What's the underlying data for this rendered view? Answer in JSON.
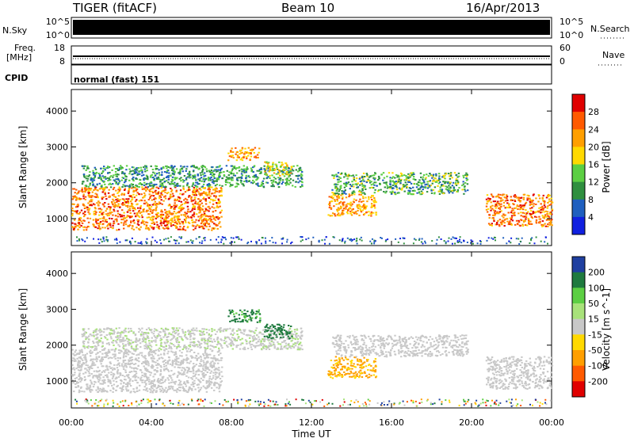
{
  "header": {
    "radar": "TIGER (fitACF)",
    "beam": "Beam 10",
    "date": "16/Apr/2013"
  },
  "top_strips": {
    "nsky_label": "N.Sky",
    "nsky_ticks": [
      "10^5",
      "10^0"
    ],
    "nsearch_label": "N.Search",
    "nsearch_ticks": [
      "10^5",
      "10^0"
    ],
    "freq_label": "Freq.",
    "freq_unit": "[MHz]",
    "freq_ticks": [
      "18",
      "8"
    ],
    "nave_label": "Nave",
    "nave_ticks": [
      "60",
      "0"
    ],
    "cpid_label": "CPID",
    "cpid_text": "normal (fast) 151"
  },
  "chart_data": [
    {
      "type": "heatmap",
      "panel": "power",
      "ylabel": "Slant Range [km]",
      "yticks": [
        "1000",
        "2000",
        "3000",
        "4000"
      ],
      "ylim": [
        250,
        4600
      ],
      "xlim_hours": [
        0,
        24
      ],
      "colorbar_label": "Power [dB]",
      "colorbar_ticks": [
        "28",
        "24",
        "20",
        "16",
        "12",
        "8",
        "4"
      ],
      "colorbar_colors": [
        "#e00000",
        "#ff5a00",
        "#ff9f00",
        "#ffd900",
        "#5ccf43",
        "#2f8f3f",
        "#1f5fbf",
        "#1020e0"
      ],
      "regions": [
        {
          "name": "ground-scatter-morning",
          "t": [
            0.0,
            7.5
          ],
          "range_km": [
            700,
            1900
          ],
          "level_db": 24
        },
        {
          "name": "upper-band",
          "t": [
            0.5,
            11.5
          ],
          "range_km": [
            1900,
            2500
          ],
          "level_db": 10
        },
        {
          "name": "echo-0830",
          "t": [
            7.8,
            9.4
          ],
          "range_km": [
            2650,
            3000
          ],
          "level_db": 22
        },
        {
          "name": "echo-1000",
          "t": [
            9.6,
            11.0
          ],
          "range_km": [
            2200,
            2600
          ],
          "level_db": 18
        },
        {
          "name": "echo-1330",
          "t": [
            12.8,
            15.2
          ],
          "range_km": [
            1100,
            1700
          ],
          "level_db": 22
        },
        {
          "name": "arc-1500-1900",
          "t": [
            13.0,
            19.8
          ],
          "range_km": [
            1700,
            2300
          ],
          "level_db": 12
        },
        {
          "name": "ground-scatter-evening",
          "t": [
            20.7,
            24.0
          ],
          "range_km": [
            800,
            1700
          ],
          "level_db": 24
        }
      ]
    },
    {
      "type": "heatmap",
      "panel": "velocity",
      "ylabel": "Slant Range [km]",
      "yticks": [
        "1000",
        "2000",
        "3000",
        "4000"
      ],
      "ylim": [
        250,
        4600
      ],
      "xlim_hours": [
        0,
        24
      ],
      "xticks": [
        "00:00",
        "04:00",
        "08:00",
        "12:00",
        "16:00",
        "20:00",
        "00:00"
      ],
      "xlabel": "Time UT",
      "colorbar_label": "Velocity [m s^-1]",
      "colorbar_ticks": [
        "200",
        "100",
        "50",
        "15",
        "-15",
        "-50",
        "-100",
        "-200"
      ],
      "colorbar_colors": [
        "#1f3fa0",
        "#1f7a3f",
        "#5ccf43",
        "#a8e27a",
        "#c8c8c8",
        "#ffd900",
        "#ff9f00",
        "#ff5a00",
        "#e00000"
      ],
      "regions": [
        {
          "name": "ground-scatter-morning",
          "t": [
            0.0,
            7.5
          ],
          "range_km": [
            700,
            1900
          ],
          "velocity": 0
        },
        {
          "name": "upper-band",
          "t": [
            0.5,
            11.5
          ],
          "range_km": [
            1900,
            2500
          ],
          "velocity": 10
        },
        {
          "name": "echo-0830",
          "t": [
            7.8,
            9.4
          ],
          "range_km": [
            2650,
            3000
          ],
          "velocity": 120
        },
        {
          "name": "echo-1000",
          "t": [
            9.6,
            11.0
          ],
          "range_km": [
            2200,
            2600
          ],
          "velocity": 150
        },
        {
          "name": "echo-1330",
          "t": [
            12.8,
            15.2
          ],
          "range_km": [
            1100,
            1700
          ],
          "velocity": -60
        },
        {
          "name": "arc-1500-1900",
          "t": [
            13.0,
            19.8
          ],
          "range_km": [
            1700,
            2300
          ],
          "velocity": -5
        },
        {
          "name": "ground-scatter-evening",
          "t": [
            20.7,
            24.0
          ],
          "range_km": [
            800,
            1700
          ],
          "velocity": 0
        }
      ]
    }
  ]
}
